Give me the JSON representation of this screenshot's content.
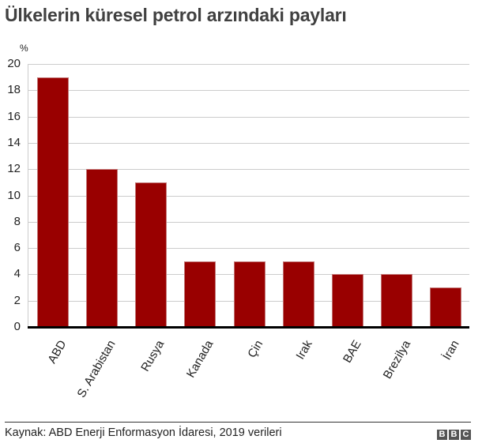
{
  "header": {
    "title": "Ülkelerin küresel petrol arzındaki payları"
  },
  "footer": {
    "source": "Kaynak: ABD Enerji Enformasyon İdaresi, 2019 verileri",
    "logo_letters": [
      "B",
      "B",
      "C"
    ]
  },
  "colors": {
    "bar": "#990000",
    "bar_border": "#c27777",
    "grid": "#cccccc",
    "baseline": "#000000",
    "title": "#404040"
  },
  "chart_data": {
    "type": "bar",
    "title": "Ülkelerin küresel petrol arzındaki payları",
    "xlabel": "",
    "ylabel": "%",
    "ylim": [
      0,
      20
    ],
    "yticks": [
      0,
      2,
      4,
      6,
      8,
      10,
      12,
      14,
      16,
      18,
      20
    ],
    "grid": true,
    "legend": null,
    "categories": [
      "ABD",
      "S. Arabistan",
      "Rusya",
      "Kanada",
      "Çin",
      "Irak",
      "BAE",
      "Brezilya",
      "İran"
    ],
    "values": [
      19,
      12,
      11,
      5,
      5,
      5,
      4,
      4,
      3
    ],
    "source": "Kaynak: ABD Enerji Enformasyon İdaresi, 2019 verileri"
  }
}
